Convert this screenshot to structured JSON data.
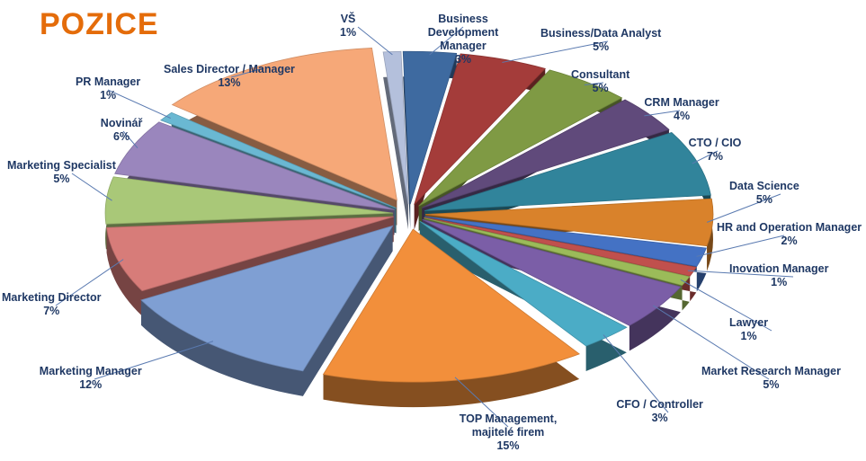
{
  "chart_data": {
    "type": "pie",
    "title": "POZICE",
    "colors": {
      "title": "#e46c0a",
      "label": "#1f3864"
    },
    "slices": [
      {
        "label": "VŠ",
        "value_label": "1%",
        "value": 1,
        "color": "#b4c0dc"
      },
      {
        "label": "Business Development Manager",
        "value_label": "3%",
        "value": 3,
        "color": "#3e6aa0"
      },
      {
        "label": "Business/Data Analyst",
        "value_label": "5%",
        "value": 5,
        "color": "#a43c3a"
      },
      {
        "label": "Consultant",
        "value_label": "5%",
        "value": 5,
        "color": "#7f9a44"
      },
      {
        "label": "CRM Manager",
        "value_label": "4%",
        "value": 4,
        "color": "#604a7b"
      },
      {
        "label": "CTO / CIO",
        "value_label": "7%",
        "value": 7,
        "color": "#31849b"
      },
      {
        "label": "Data Science",
        "value_label": "5%",
        "value": 5,
        "color": "#d9822b"
      },
      {
        "label": "HR and Operation Manager",
        "value_label": "2%",
        "value": 2,
        "color": "#4472c4"
      },
      {
        "label": "Inovation Manager",
        "value_label": "1%",
        "value": 1,
        "color": "#c0504d"
      },
      {
        "label": "Lawyer",
        "value_label": "1%",
        "value": 1,
        "color": "#9bbb59"
      },
      {
        "label": "Market Research Manager",
        "value_label": "5%",
        "value": 5,
        "color": "#7b5ea7"
      },
      {
        "label": "CFO / Controller",
        "value_label": "3%",
        "value": 3,
        "color": "#4bacc6"
      },
      {
        "label": "TOP Management, majitelé firem",
        "value_label": "15%",
        "value": 15,
        "color": "#f28f3b"
      },
      {
        "label": "Marketing Manager",
        "value_label": "12%",
        "value": 12,
        "color": "#7f9fd3"
      },
      {
        "label": "Marketing Director",
        "value_label": "7%",
        "value": 7,
        "color": "#d77c79"
      },
      {
        "label": "Marketing Specialist",
        "value_label": "5%",
        "value": 5,
        "color": "#a9c878"
      },
      {
        "label": "Novinář",
        "value_label": "6%",
        "value": 6,
        "color": "#9a86bd"
      },
      {
        "label": "PR Manager",
        "value_label": "1%",
        "value": 1,
        "color": "#6ab8d2"
      },
      {
        "label": "Sales Director / Manager",
        "value_label": "13%",
        "value": 13,
        "color": "#f6a878"
      }
    ]
  }
}
